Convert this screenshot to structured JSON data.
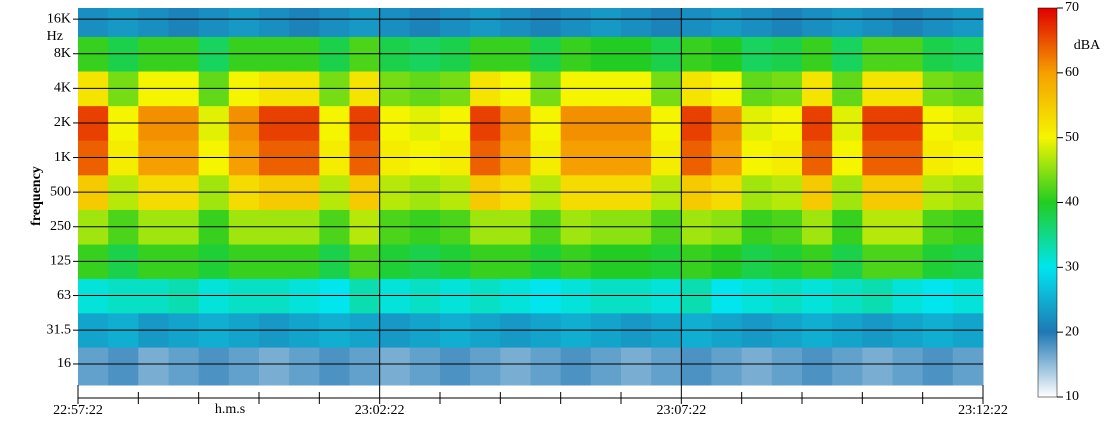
{
  "chart_data": {
    "type": "heatmap",
    "x_label": "h.m.s",
    "y_label": "frequency",
    "y_unit": "Hz",
    "colorbar_label": "dBA",
    "x": [
      0,
      30,
      60,
      90,
      120,
      150,
      180,
      210,
      240,
      270,
      300,
      330,
      360,
      390,
      420,
      450,
      480,
      510,
      540,
      570,
      600,
      630,
      660,
      690,
      720,
      750,
      780,
      810,
      840,
      870
    ],
    "xlim": [
      0,
      900
    ],
    "xticks": [
      {
        "value": 0,
        "label": "22:57:22"
      },
      {
        "value": 300,
        "label": "23:02:22"
      },
      {
        "value": 600,
        "label": "23:07:22"
      },
      {
        "value": 900,
        "label": "23:12:22"
      }
    ],
    "xminor_ticks": [
      60,
      120,
      180,
      240,
      360,
      420,
      480,
      540,
      660,
      720,
      780,
      840
    ],
    "y": [
      16,
      31.5,
      63,
      125,
      250,
      500,
      1000,
      2000,
      4000,
      8000,
      16000
    ],
    "ylim": [
      10.5,
      20000
    ],
    "ylog": true,
    "yticks": [
      16,
      31.5,
      63,
      125,
      250,
      500,
      {
        "value": 1000,
        "label": "1K"
      },
      {
        "value": 2000,
        "label": "2K"
      },
      {
        "value": 4000,
        "label": "4K"
      },
      {
        "value": 8000,
        "label": "8K"
      },
      {
        "value": 16000,
        "label": "16K"
      }
    ],
    "grid": true,
    "values": [
      [
        17,
        18,
        16,
        17,
        18,
        17,
        16,
        17,
        18,
        17,
        16,
        17,
        18,
        17,
        16,
        17,
        18,
        17,
        16,
        17,
        18,
        17,
        16,
        17,
        18,
        17,
        16,
        17,
        18,
        17
      ],
      [
        24,
        25,
        23,
        24,
        25,
        24,
        23,
        24,
        25,
        24,
        23,
        24,
        25,
        24,
        23,
        24,
        25,
        24,
        23,
        24,
        25,
        24,
        23,
        24,
        25,
        24,
        23,
        24,
        25,
        24
      ],
      [
        31,
        32,
        32,
        33,
        31,
        32,
        32,
        31,
        30,
        33,
        31,
        32,
        31,
        32,
        31,
        30,
        31,
        32,
        32,
        31,
        33,
        30,
        31,
        32,
        31,
        32,
        33,
        31,
        30,
        31
      ],
      [
        41,
        38,
        41,
        41,
        39,
        41,
        41,
        41,
        38,
        42,
        39,
        38,
        39,
        41,
        41,
        39,
        41,
        40,
        40,
        39,
        41,
        40,
        38,
        39,
        41,
        38,
        42,
        42,
        39,
        38
      ],
      [
        46,
        42,
        46,
        46,
        41,
        46,
        46,
        46,
        42,
        47,
        42,
        41,
        42,
        46,
        46,
        42,
        46,
        45,
        45,
        42,
        46,
        45,
        41,
        42,
        46,
        41,
        47,
        47,
        42,
        41
      ],
      [
        55,
        47,
        53,
        53,
        46,
        53,
        55,
        55,
        47,
        55,
        47,
        46,
        47,
        55,
        53,
        47,
        53,
        53,
        53,
        47,
        55,
        53,
        46,
        47,
        55,
        46,
        55,
        55,
        47,
        46
      ],
      [
        64,
        51,
        60,
        60,
        50,
        60,
        64,
        64,
        51,
        64,
        51,
        50,
        51,
        64,
        60,
        51,
        60,
        60,
        60,
        51,
        64,
        60,
        50,
        51,
        64,
        50,
        64,
        64,
        51,
        50
      ],
      [
        66,
        50,
        61,
        61,
        49,
        61,
        66,
        66,
        50,
        66,
        50,
        49,
        50,
        66,
        61,
        50,
        61,
        61,
        61,
        50,
        66,
        61,
        49,
        50,
        66,
        49,
        66,
        66,
        50,
        49
      ],
      [
        52,
        44,
        50,
        50,
        43,
        50,
        52,
        52,
        44,
        52,
        44,
        43,
        44,
        52,
        50,
        44,
        50,
        50,
        50,
        44,
        52,
        50,
        43,
        44,
        52,
        43,
        52,
        52,
        44,
        43
      ],
      [
        41,
        38,
        41,
        41,
        37,
        41,
        41,
        41,
        38,
        42,
        38,
        37,
        38,
        41,
        41,
        38,
        41,
        40,
        40,
        38,
        41,
        40,
        37,
        38,
        41,
        37,
        42,
        42,
        38,
        37
      ],
      [
        22,
        23,
        22,
        21,
        22,
        23,
        22,
        21,
        22,
        23,
        22,
        21,
        22,
        23,
        22,
        21,
        22,
        23,
        22,
        21,
        22,
        23,
        22,
        21,
        22,
        23,
        22,
        21,
        22,
        23
      ]
    ],
    "colorscale": [
      [
        10,
        "#ffffff"
      ],
      [
        20,
        "#1f78b4"
      ],
      [
        30,
        "#00e5ee"
      ],
      [
        40,
        "#22cc22"
      ],
      [
        50,
        "#f5f500"
      ],
      [
        60,
        "#f5a000"
      ],
      [
        70,
        "#e00000"
      ]
    ],
    "clim": [
      10,
      70
    ],
    "cticks": [
      10,
      20,
      30,
      40,
      50,
      60,
      70
    ]
  }
}
